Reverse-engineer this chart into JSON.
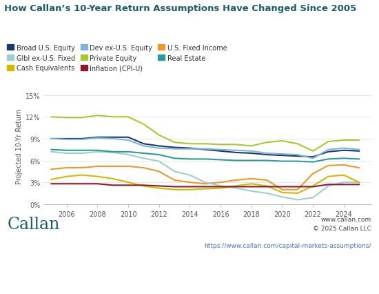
{
  "title": "How Callan’s 10-Year Return Assumptions Have Changed Since 2005",
  "ylabel": "Projected 10-Yr Return",
  "title_color": "#1a5c6b",
  "title_fontsize": 9.5,
  "background_color": "#ffffff",
  "ylim": [
    0,
    0.16
  ],
  "yticks": [
    0.0,
    0.03,
    0.06,
    0.09,
    0.12,
    0.15
  ],
  "ytick_labels": [
    "0%",
    "3%",
    "6%",
    "9%",
    "12%",
    "15%"
  ],
  "callan_text": "Callan",
  "callan_color": "#1a5c6b",
  "website_text": "www.callan.com",
  "copyright_text": "© 2025 Callan LLC",
  "url_text": "https://www.callan.com/capital-markets-assumptions/",
  "series": [
    {
      "name": "Broad U.S. Equity",
      "color": "#1a3a6b",
      "years": [
        2005,
        2006,
        2007,
        2008,
        2009,
        2010,
        2011,
        2012,
        2013,
        2014,
        2015,
        2016,
        2017,
        2018,
        2019,
        2020,
        2021,
        2022,
        2023,
        2024,
        2025
      ],
      "values": [
        0.09,
        0.09,
        0.09,
        0.092,
        0.092,
        0.092,
        0.083,
        0.08,
        0.078,
        0.077,
        0.075,
        0.073,
        0.071,
        0.07,
        0.068,
        0.067,
        0.066,
        0.065,
        0.072,
        0.074,
        0.073
      ]
    },
    {
      "name": "Dev ex-U.S. Equity",
      "color": "#7eb5d6",
      "years": [
        2005,
        2006,
        2007,
        2008,
        2009,
        2010,
        2011,
        2012,
        2013,
        2014,
        2015,
        2016,
        2017,
        2018,
        2019,
        2020,
        2021,
        2022,
        2023,
        2024,
        2025
      ],
      "values": [
        0.09,
        0.089,
        0.089,
        0.091,
        0.09,
        0.088,
        0.08,
        0.077,
        0.076,
        0.076,
        0.076,
        0.075,
        0.074,
        0.073,
        0.07,
        0.069,
        0.068,
        0.063,
        0.075,
        0.077,
        0.075
      ]
    },
    {
      "name": "U.S. Fixed Income",
      "color": "#f0962a",
      "years": [
        2005,
        2006,
        2007,
        2008,
        2009,
        2010,
        2011,
        2012,
        2013,
        2014,
        2015,
        2016,
        2017,
        2018,
        2019,
        2020,
        2021,
        2022,
        2023,
        2024,
        2025
      ],
      "values": [
        0.048,
        0.05,
        0.05,
        0.052,
        0.052,
        0.052,
        0.05,
        0.045,
        0.033,
        0.03,
        0.028,
        0.03,
        0.033,
        0.035,
        0.033,
        0.02,
        0.02,
        0.042,
        0.053,
        0.054,
        0.05
      ]
    },
    {
      "name": "Glbl ex-U.S. Fixed",
      "color": "#9ecece",
      "years": [
        2005,
        2006,
        2007,
        2008,
        2009,
        2010,
        2011,
        2012,
        2013,
        2014,
        2015,
        2016,
        2017,
        2018,
        2019,
        2020,
        2021,
        2022,
        2023,
        2024,
        2025
      ],
      "values": [
        0.072,
        0.07,
        0.07,
        0.072,
        0.071,
        0.068,
        0.063,
        0.059,
        0.045,
        0.04,
        0.03,
        0.025,
        0.022,
        0.018,
        0.015,
        0.01,
        0.006,
        0.009,
        0.025,
        0.03,
        0.03
      ]
    },
    {
      "name": "Private Equity",
      "color": "#a8c832",
      "years": [
        2005,
        2006,
        2007,
        2008,
        2009,
        2010,
        2011,
        2012,
        2013,
        2014,
        2015,
        2016,
        2017,
        2018,
        2019,
        2020,
        2021,
        2022,
        2023,
        2024,
        2025
      ],
      "values": [
        0.12,
        0.119,
        0.119,
        0.122,
        0.12,
        0.12,
        0.11,
        0.095,
        0.085,
        0.083,
        0.083,
        0.082,
        0.082,
        0.08,
        0.085,
        0.087,
        0.083,
        0.073,
        0.086,
        0.088,
        0.088
      ]
    },
    {
      "name": "Real Estate",
      "color": "#2a9a9a",
      "years": [
        2005,
        2006,
        2007,
        2008,
        2009,
        2010,
        2011,
        2012,
        2013,
        2014,
        2015,
        2016,
        2017,
        2018,
        2019,
        2020,
        2021,
        2022,
        2023,
        2024,
        2025
      ],
      "values": [
        0.075,
        0.074,
        0.074,
        0.074,
        0.072,
        0.072,
        0.07,
        0.068,
        0.063,
        0.062,
        0.062,
        0.061,
        0.06,
        0.06,
        0.06,
        0.059,
        0.059,
        0.058,
        0.062,
        0.063,
        0.062
      ]
    },
    {
      "name": "Cash Equivalents",
      "color": "#d4b800",
      "years": [
        2005,
        2006,
        2007,
        2008,
        2009,
        2010,
        2011,
        2012,
        2013,
        2014,
        2015,
        2016,
        2017,
        2018,
        2019,
        2020,
        2021,
        2022,
        2023,
        2024,
        2025
      ],
      "values": [
        0.034,
        0.038,
        0.04,
        0.038,
        0.035,
        0.03,
        0.025,
        0.022,
        0.02,
        0.02,
        0.021,
        0.022,
        0.025,
        0.028,
        0.025,
        0.016,
        0.015,
        0.025,
        0.038,
        0.04,
        0.03
      ]
    },
    {
      "name": "Inflation (CPI-U)",
      "color": "#8b1a2a",
      "years": [
        2005,
        2006,
        2007,
        2008,
        2009,
        2010,
        2011,
        2012,
        2013,
        2014,
        2015,
        2016,
        2017,
        2018,
        2019,
        2020,
        2021,
        2022,
        2023,
        2024,
        2025
      ],
      "values": [
        0.028,
        0.028,
        0.028,
        0.028,
        0.026,
        0.026,
        0.026,
        0.025,
        0.024,
        0.024,
        0.024,
        0.024,
        0.024,
        0.024,
        0.024,
        0.024,
        0.024,
        0.024,
        0.027,
        0.027,
        0.027
      ]
    }
  ],
  "legend_order": [
    "Broad U.S. Equity",
    "Glbl ex-U.S. Fixed",
    "Cash Equivalents",
    "Dev ex-U.S. Equity",
    "Private Equity",
    "Inflation (CPI-U)",
    "U.S. Fixed Income",
    "Real Estate"
  ],
  "xticks": [
    2006,
    2008,
    2010,
    2012,
    2014,
    2016,
    2018,
    2020,
    2022,
    2024
  ]
}
